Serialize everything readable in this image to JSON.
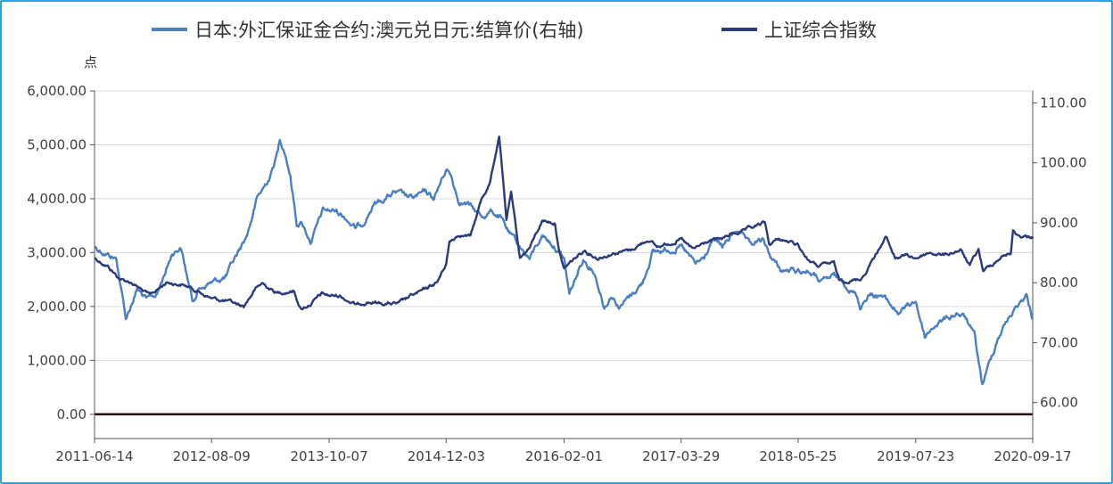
{
  "chart_data": {
    "type": "line",
    "y_unit_label": "点",
    "legend_position": "top-center",
    "grid": true,
    "x_tick_labels": [
      "2011-06-14",
      "2012-08-09",
      "2013-10-07",
      "2014-12-03",
      "2016-02-01",
      "2017-03-29",
      "2018-05-25",
      "2019-07-23",
      "2020-09-17"
    ],
    "x_range": [
      "2011-06-14",
      "2020-09-17"
    ],
    "y_left": {
      "range": [
        -450,
        6000
      ],
      "ticks": [
        0,
        1000,
        2000,
        3000,
        4000,
        5000,
        6000
      ],
      "tick_labels": [
        "0.00",
        "1,000.00",
        "2,000.00",
        "3,000.00",
        "4,000.00",
        "5,000.00",
        "6,000.00"
      ]
    },
    "y_right": {
      "range": [
        54,
        112
      ],
      "ticks": [
        60,
        70,
        80,
        90,
        100,
        110
      ],
      "tick_labels": [
        "60.00",
        "70.00",
        "80.00",
        "90.00",
        "100.00",
        "110.00"
      ]
    },
    "series": [
      {
        "name": "日本:外汇保证金合约:澳元兑日元:结算价(右轴)",
        "axis": "right",
        "color": "#4a7fc1",
        "points": [
          [
            "2011-06-14",
            86
          ],
          [
            "2011-09-01",
            84
          ],
          [
            "2011-10-05",
            74
          ],
          [
            "2011-11-15",
            79
          ],
          [
            "2011-12-20",
            77
          ],
          [
            "2012-01-25",
            78
          ],
          [
            "2012-03-20",
            85
          ],
          [
            "2012-04-20",
            86
          ],
          [
            "2012-06-01",
            77
          ],
          [
            "2012-06-25",
            79
          ],
          [
            "2012-08-01",
            80
          ],
          [
            "2012-08-09",
            80
          ],
          [
            "2012-10-01",
            81
          ],
          [
            "2012-11-01",
            84
          ],
          [
            "2012-12-15",
            88
          ],
          [
            "2013-01-20",
            94
          ],
          [
            "2013-02-15",
            96
          ],
          [
            "2013-03-10",
            98
          ],
          [
            "2013-04-05",
            102
          ],
          [
            "2013-04-12",
            104
          ],
          [
            "2013-05-01",
            102
          ],
          [
            "2013-05-20",
            98
          ],
          [
            "2013-06-12",
            90
          ],
          [
            "2013-07-01",
            90
          ],
          [
            "2013-08-01",
            87
          ],
          [
            "2013-08-20",
            89
          ],
          [
            "2013-09-15",
            92
          ],
          [
            "2013-10-07",
            92
          ],
          [
            "2013-10-30",
            92
          ],
          [
            "2013-12-05",
            91
          ],
          [
            "2014-01-10",
            89
          ],
          [
            "2014-02-05",
            90
          ],
          [
            "2014-03-15",
            93
          ],
          [
            "2014-06-01",
            95
          ],
          [
            "2014-08-01",
            94
          ],
          [
            "2014-09-20",
            95
          ],
          [
            "2014-10-20",
            94
          ],
          [
            "2014-12-03",
            99
          ],
          [
            "2014-12-20",
            98
          ],
          [
            "2015-01-15",
            94
          ],
          [
            "2015-02-20",
            93
          ],
          [
            "2015-04-10",
            91
          ],
          [
            "2015-05-15",
            92
          ],
          [
            "2015-06-15",
            91
          ],
          [
            "2015-07-20",
            88
          ],
          [
            "2015-08-25",
            86
          ],
          [
            "2015-09-30",
            84
          ],
          [
            "2015-11-15",
            88
          ],
          [
            "2016-01-01",
            86
          ],
          [
            "2016-02-01",
            84
          ],
          [
            "2016-02-20",
            78
          ],
          [
            "2016-04-10",
            84
          ],
          [
            "2016-05-20",
            82
          ],
          [
            "2016-06-25",
            76
          ],
          [
            "2016-07-20",
            78
          ],
          [
            "2016-08-20",
            76
          ],
          [
            "2016-10-01",
            78
          ],
          [
            "2016-11-10",
            80
          ],
          [
            "2016-12-15",
            85
          ],
          [
            "2017-03-29",
            86
          ],
          [
            "2017-05-20",
            83
          ],
          [
            "2017-06-20",
            84
          ],
          [
            "2017-07-20",
            87
          ],
          [
            "2017-08-25",
            86
          ],
          [
            "2017-10-20",
            89
          ],
          [
            "2017-12-01",
            86
          ],
          [
            "2018-01-15",
            87
          ],
          [
            "2018-02-20",
            84
          ],
          [
            "2018-03-25",
            82
          ],
          [
            "2018-05-25",
            82
          ],
          [
            "2018-07-01",
            82
          ],
          [
            "2018-08-20",
            80
          ],
          [
            "2018-10-01",
            81
          ],
          [
            "2018-11-10",
            80
          ],
          [
            "2018-12-20",
            78
          ],
          [
            "2019-01-03",
            76
          ],
          [
            "2019-02-01",
            78
          ],
          [
            "2019-03-20",
            78
          ],
          [
            "2019-05-20",
            75
          ],
          [
            "2019-07-23",
            77
          ],
          [
            "2019-08-25",
            71
          ],
          [
            "2019-10-01",
            73
          ],
          [
            "2019-11-10",
            74
          ],
          [
            "2019-12-20",
            75
          ],
          [
            "2020-01-20",
            74
          ],
          [
            "2020-02-20",
            71
          ],
          [
            "2020-03-19",
            63
          ],
          [
            "2020-04-10",
            66
          ],
          [
            "2020-05-15",
            71
          ],
          [
            "2020-06-20",
            74
          ],
          [
            "2020-07-20",
            76
          ],
          [
            "2020-08-25",
            78
          ],
          [
            "2020-09-17",
            74
          ]
        ]
      },
      {
        "name": "上证综合指数",
        "axis": "left",
        "color": "#2a3a7a",
        "points": [
          [
            "2011-06-14",
            2900
          ],
          [
            "2011-08-01",
            2750
          ],
          [
            "2011-09-15",
            2500
          ],
          [
            "2011-10-25",
            2450
          ],
          [
            "2011-12-30",
            2200
          ],
          [
            "2012-03-01",
            2450
          ],
          [
            "2012-05-01",
            2400
          ],
          [
            "2012-06-15",
            2300
          ],
          [
            "2012-08-09",
            2150
          ],
          [
            "2012-10-01",
            2100
          ],
          [
            "2012-12-03",
            2000
          ],
          [
            "2013-01-10",
            2300
          ],
          [
            "2013-02-08",
            2430
          ],
          [
            "2013-04-01",
            2250
          ],
          [
            "2013-06-01",
            2300
          ],
          [
            "2013-06-27",
            1950
          ],
          [
            "2013-08-01",
            2050
          ],
          [
            "2013-09-10",
            2230
          ],
          [
            "2013-10-07",
            2200
          ],
          [
            "2013-11-15",
            2200
          ],
          [
            "2014-01-15",
            2020
          ],
          [
            "2014-02-20",
            2100
          ],
          [
            "2014-04-01",
            2060
          ],
          [
            "2014-06-15",
            2050
          ],
          [
            "2014-08-01",
            2200
          ],
          [
            "2014-09-15",
            2300
          ],
          [
            "2014-11-01",
            2450
          ],
          [
            "2014-12-03",
            2800
          ],
          [
            "2014-12-15",
            3200
          ],
          [
            "2015-01-20",
            3350
          ],
          [
            "2015-03-01",
            3300
          ],
          [
            "2015-04-10",
            4000
          ],
          [
            "2015-05-10",
            4300
          ],
          [
            "2015-06-12",
            5170
          ],
          [
            "2015-07-08",
            3600
          ],
          [
            "2015-07-25",
            4100
          ],
          [
            "2015-08-26",
            2900
          ],
          [
            "2015-10-01",
            3100
          ],
          [
            "2015-11-15",
            3600
          ],
          [
            "2015-12-31",
            3550
          ],
          [
            "2016-01-15",
            3000
          ],
          [
            "2016-02-01",
            2700
          ],
          [
            "2016-03-01",
            2850
          ],
          [
            "2016-04-15",
            3050
          ],
          [
            "2016-06-01",
            2900
          ],
          [
            "2016-08-01",
            3000
          ],
          [
            "2016-10-01",
            3050
          ],
          [
            "2016-12-01",
            3250
          ],
          [
            "2017-01-01",
            3100
          ],
          [
            "2017-03-29",
            3250
          ],
          [
            "2017-05-10",
            3050
          ],
          [
            "2017-07-01",
            3200
          ],
          [
            "2017-08-20",
            3250
          ],
          [
            "2017-10-01",
            3350
          ],
          [
            "2017-11-15",
            3400
          ],
          [
            "2018-01-25",
            3550
          ],
          [
            "2018-02-10",
            3150
          ],
          [
            "2018-03-15",
            3250
          ],
          [
            "2018-05-25",
            3150
          ],
          [
            "2018-06-25",
            2900
          ],
          [
            "2018-08-01",
            2750
          ],
          [
            "2018-10-01",
            2800
          ],
          [
            "2018-10-19",
            2480
          ],
          [
            "2018-12-31",
            2500
          ],
          [
            "2019-01-20",
            2600
          ],
          [
            "2019-02-25",
            2950
          ],
          [
            "2019-04-08",
            3280
          ],
          [
            "2019-05-10",
            2900
          ],
          [
            "2019-06-15",
            2950
          ],
          [
            "2019-07-23",
            2900
          ],
          [
            "2019-09-10",
            3000
          ],
          [
            "2019-11-01",
            2950
          ],
          [
            "2019-12-31",
            3050
          ],
          [
            "2020-02-03",
            2750
          ],
          [
            "2020-03-05",
            3050
          ],
          [
            "2020-03-23",
            2650
          ],
          [
            "2020-05-20",
            2900
          ],
          [
            "2020-06-30",
            3000
          ],
          [
            "2020-07-08",
            3400
          ],
          [
            "2020-08-01",
            3300
          ],
          [
            "2020-09-17",
            3300
          ]
        ]
      }
    ]
  }
}
